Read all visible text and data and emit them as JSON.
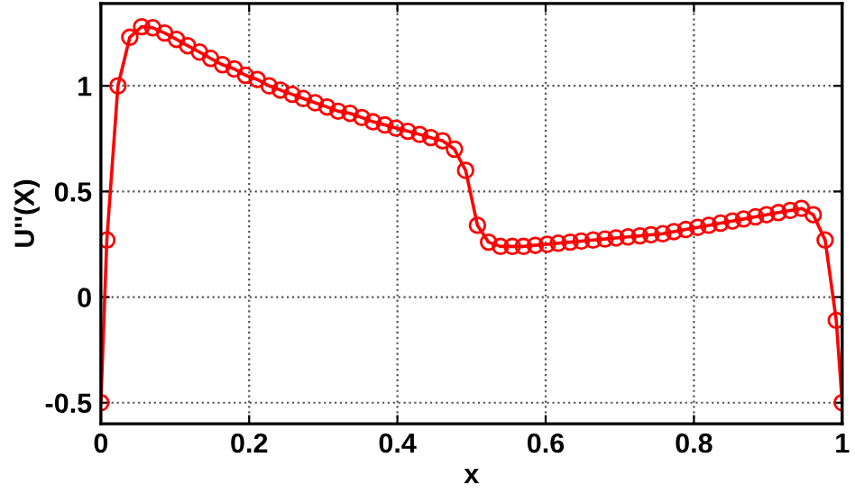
{
  "chart_data": {
    "type": "line",
    "xlabel": "x",
    "ylabel": "U''(X)",
    "x": [
      0,
      0.008,
      0.023,
      0.039,
      0.055,
      0.07,
      0.086,
      0.102,
      0.117,
      0.133,
      0.148,
      0.164,
      0.18,
      0.195,
      0.211,
      0.227,
      0.242,
      0.258,
      0.273,
      0.289,
      0.305,
      0.32,
      0.336,
      0.352,
      0.367,
      0.383,
      0.398,
      0.414,
      0.43,
      0.445,
      0.461,
      0.477,
      0.492,
      0.508,
      0.523,
      0.539,
      0.555,
      0.57,
      0.586,
      0.602,
      0.617,
      0.633,
      0.648,
      0.664,
      0.68,
      0.695,
      0.711,
      0.727,
      0.742,
      0.758,
      0.773,
      0.789,
      0.805,
      0.82,
      0.836,
      0.852,
      0.867,
      0.883,
      0.898,
      0.914,
      0.93,
      0.945,
      0.961,
      0.977,
      0.992,
      1
    ],
    "series": [
      {
        "color": "#ff0000",
        "values": [
          -0.5,
          0.27,
          1.0,
          1.23,
          1.28,
          1.275,
          1.25,
          1.22,
          1.19,
          1.16,
          1.13,
          1.1,
          1.08,
          1.05,
          1.03,
          1.0,
          0.98,
          0.96,
          0.94,
          0.92,
          0.9,
          0.88,
          0.87,
          0.85,
          0.83,
          0.815,
          0.8,
          0.785,
          0.77,
          0.755,
          0.74,
          0.7,
          0.6,
          0.34,
          0.26,
          0.24,
          0.24,
          0.24,
          0.245,
          0.25,
          0.255,
          0.26,
          0.265,
          0.27,
          0.275,
          0.28,
          0.285,
          0.29,
          0.295,
          0.3,
          0.31,
          0.32,
          0.33,
          0.34,
          0.35,
          0.36,
          0.37,
          0.38,
          0.39,
          0.4,
          0.41,
          0.42,
          0.39,
          0.27,
          -0.11,
          -0.5
        ]
      }
    ],
    "xlim": [
      0,
      1
    ],
    "ylim": [
      -0.6,
      1.39
    ],
    "xticks": [
      0,
      0.2,
      0.4,
      0.6,
      0.8,
      1
    ],
    "yticks": [
      -0.5,
      0,
      0.5,
      1
    ],
    "grid": true,
    "marker": "circle",
    "line_style": "solid"
  }
}
